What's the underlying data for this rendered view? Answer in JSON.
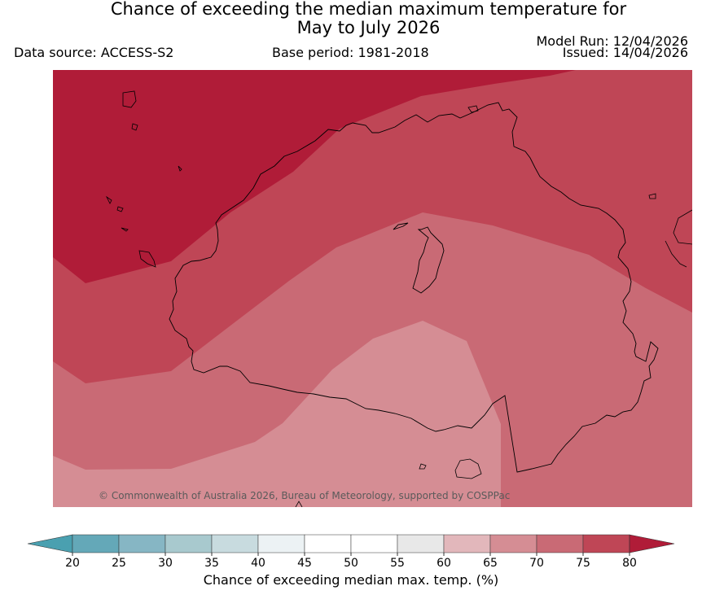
{
  "title_line1": "Chance of exceeding the median maximum temperature for",
  "title_line2": "May to July 2026",
  "data_source": "Data source: ACCESS-S2",
  "base_period": "Base period: 1981-2018",
  "model_run": "Model Run: 12/04/2026",
  "issued": "Issued: 14/04/2026",
  "copyright": "© Commonwealth of Australia 2026, Bureau of Meteorology, supported by COSPPac",
  "colorbar": {
    "label": "Chance of exceeding median max. temp. (%)",
    "ticks": [
      "20",
      "25",
      "30",
      "35",
      "40",
      "45",
      "50",
      "55",
      "60",
      "65",
      "70",
      "75",
      "80"
    ],
    "colors": [
      "#64a8b8",
      "#86b6c4",
      "#a8c9ce",
      "#c8dbdf",
      "#ecf2f4",
      "#ffffff",
      "#ffffff",
      "#e8e8e8",
      "#e2b7bb",
      "#d58d94",
      "#c96a75",
      "#bf4656"
    ],
    "low_extend_color": "#4aa0b0",
    "high_extend_color": "#b01c38"
  },
  "map": {
    "bands": [
      {
        "range": "80+",
        "color": "#b01c38"
      },
      {
        "range": "75-80",
        "color": "#bf4656"
      },
      {
        "range": "70-75",
        "color": "#c96a75"
      },
      {
        "range": "65-70",
        "color": "#d58d94"
      }
    ]
  }
}
